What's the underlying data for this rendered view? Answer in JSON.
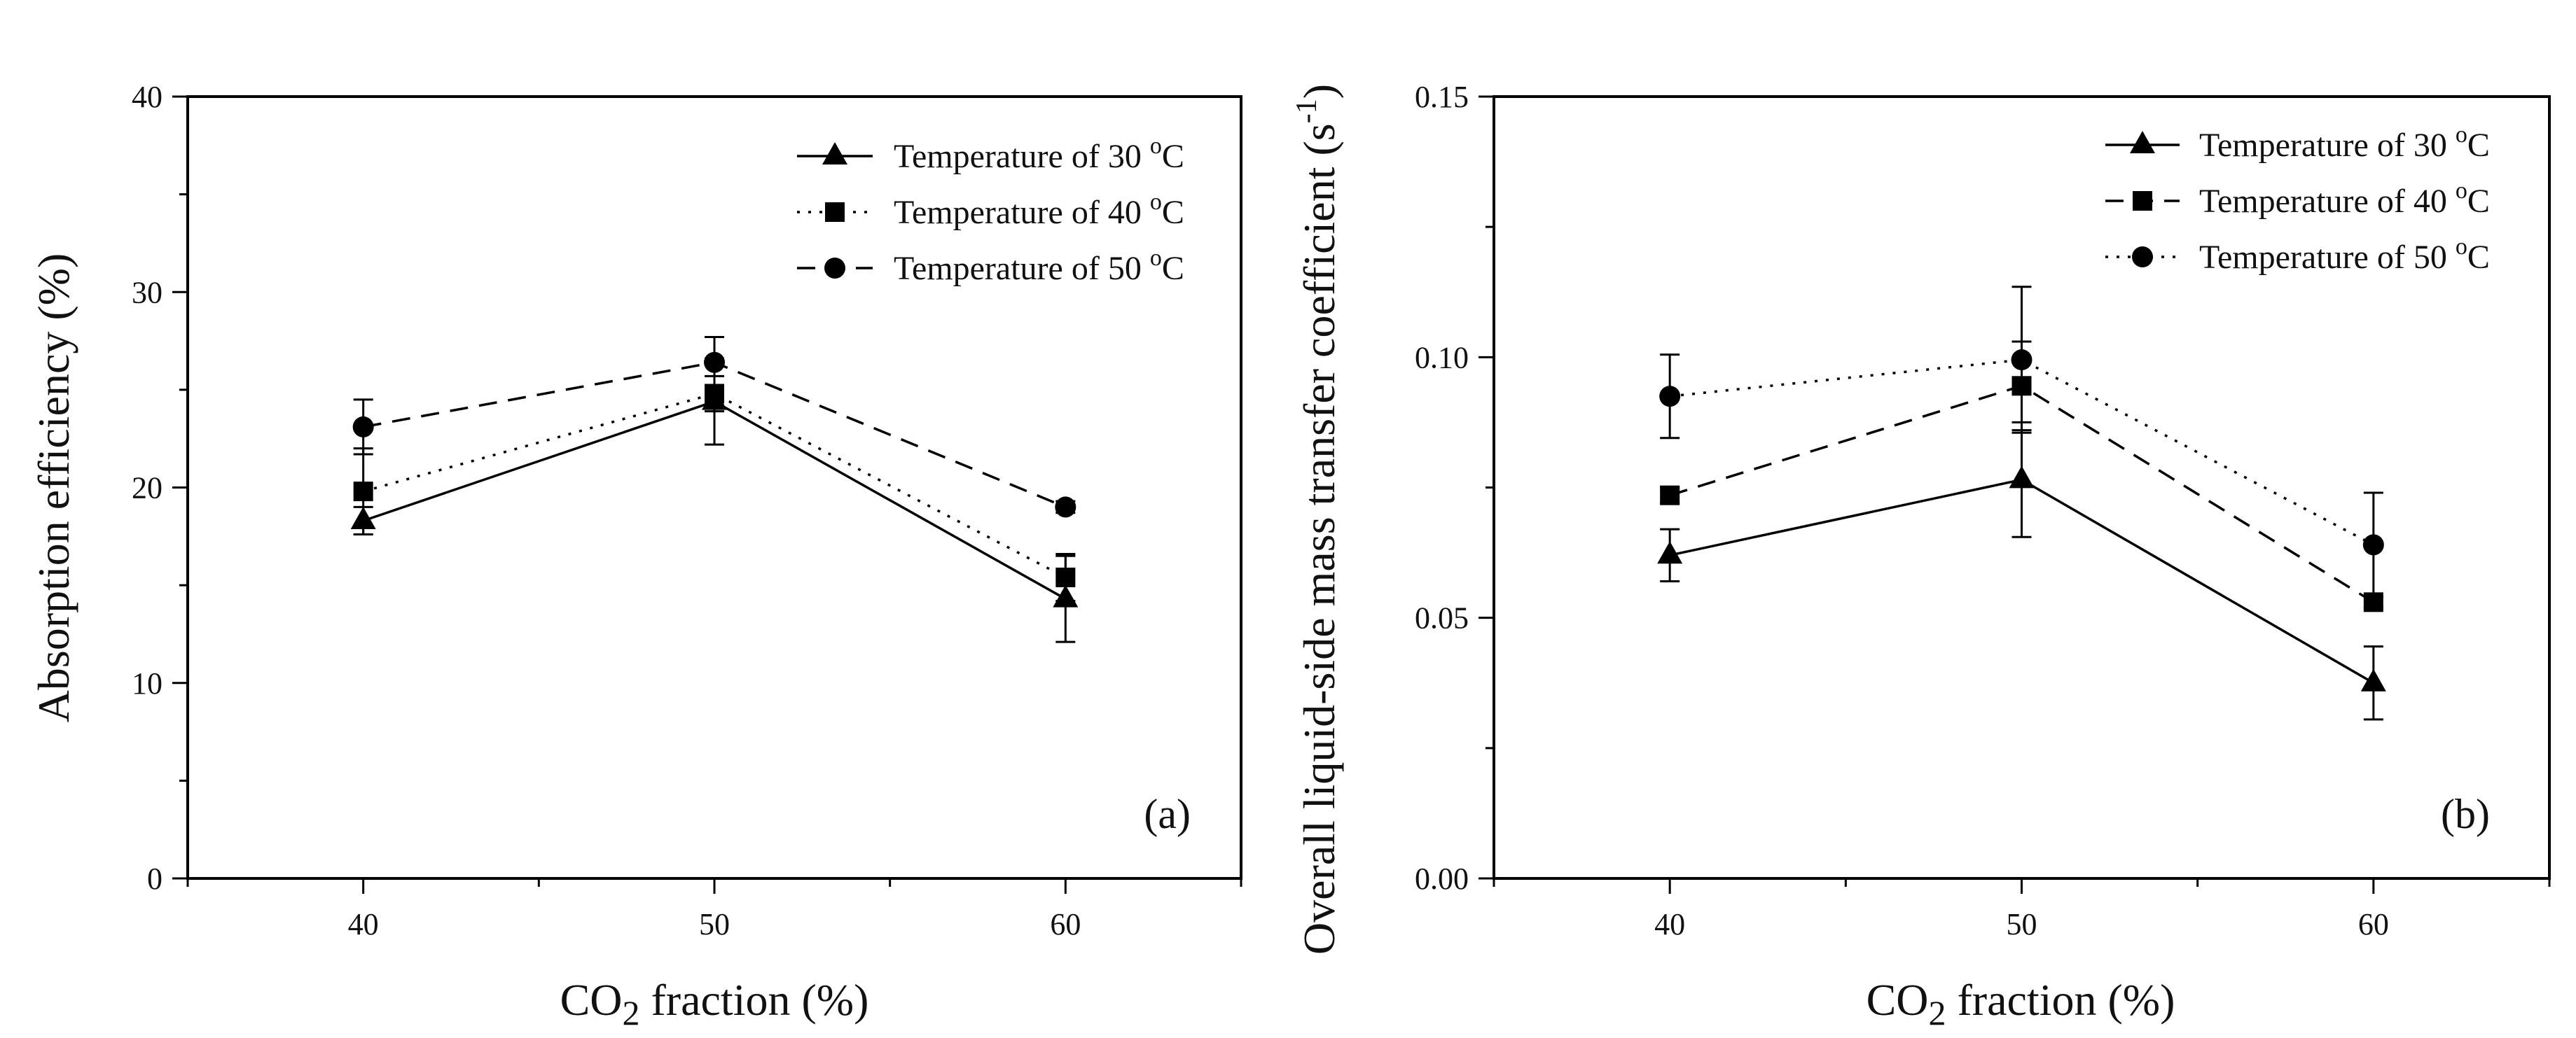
{
  "chart_data": [
    {
      "type": "line",
      "panel_label": "(a)",
      "xlabel": {
        "main": "CO",
        "sub": "2",
        "rest": " fraction (%)"
      },
      "ylabel": "Absorption efficiency (%)",
      "xlim": [
        35,
        65
      ],
      "ylim": [
        0,
        40
      ],
      "x_ticks": [
        40,
        50,
        60
      ],
      "y_ticks": [
        0,
        10,
        20,
        30,
        40
      ],
      "x_tick_labels": [
        "40",
        "50",
        "60"
      ],
      "y_tick_labels": [
        "0",
        "10",
        "20",
        "30",
        "40"
      ],
      "legend_position": "top-right",
      "series": [
        {
          "name": "Temperature of 30 °C",
          "label": {
            "text": "Temperature of 30 ",
            "sup": "o",
            "unit": "C"
          },
          "marker": "triangle",
          "line": "solid",
          "x": [
            40,
            50,
            60
          ],
          "values": [
            18.3,
            24.4,
            14.3
          ],
          "errors": [
            0.7,
            2.2,
            2.2
          ]
        },
        {
          "name": "Temperature of 40 °C",
          "label": {
            "text": "Temperature of 40 ",
            "sup": "o",
            "unit": "C"
          },
          "marker": "square",
          "line": "dotted",
          "x": [
            40,
            50,
            60
          ],
          "values": [
            19.8,
            24.8,
            15.4
          ],
          "errors": [
            2.2,
            0.9,
            1.2
          ]
        },
        {
          "name": "Temperature of 50 °C",
          "label": {
            "text": "Temperature of 50 ",
            "sup": "o",
            "unit": "C"
          },
          "marker": "circle",
          "line": "dashed",
          "x": [
            40,
            50,
            60
          ],
          "values": [
            23.1,
            26.4,
            19.0
          ],
          "errors": [
            1.4,
            1.3,
            0.3
          ]
        }
      ]
    },
    {
      "type": "line",
      "panel_label": "(b)",
      "xlabel": {
        "main": "CO",
        "sub": "2",
        "rest": " fraction (%)"
      },
      "ylabel": {
        "main": "Overall liquid-side mass transfer coefficient (s",
        "sup": "-1",
        "end": ")"
      },
      "xlim": [
        35,
        65
      ],
      "ylim": [
        0,
        0.15
      ],
      "x_ticks": [
        40,
        50,
        60
      ],
      "y_ticks": [
        0,
        0.05,
        0.1,
        0.15
      ],
      "x_tick_labels": [
        "40",
        "50",
        "60"
      ],
      "y_tick_labels": [
        "0.00",
        "0.05",
        "0.10",
        "0.15"
      ],
      "legend_position": "top-right",
      "series": [
        {
          "name": "Temperature of 30 °C",
          "label": {
            "text": "Temperature of 30 ",
            "sup": "o",
            "unit": "C"
          },
          "marker": "triangle",
          "line": "solid",
          "x": [
            40,
            50,
            60
          ],
          "values": [
            0.062,
            0.0765,
            0.0375
          ],
          "errors": [
            0.005,
            0.011,
            0.007
          ]
        },
        {
          "name": "Temperature of 40 °C",
          "label": {
            "text": "Temperature of 40 ",
            "sup": "o",
            "unit": "C"
          },
          "marker": "square",
          "line": "dashed",
          "x": [
            40,
            50,
            60
          ],
          "values": [
            0.0735,
            0.0945,
            0.053
          ],
          "errors": [
            0.0015,
            0.0085,
            0.001
          ]
        },
        {
          "name": "Temperature of 50 °C",
          "label": {
            "text": "Temperature of 50 ",
            "sup": "o",
            "unit": "C"
          },
          "marker": "circle",
          "line": "dotted",
          "x": [
            40,
            50,
            60
          ],
          "values": [
            0.0925,
            0.0995,
            0.064
          ],
          "errors": [
            0.008,
            0.014,
            0.01
          ]
        }
      ]
    }
  ]
}
